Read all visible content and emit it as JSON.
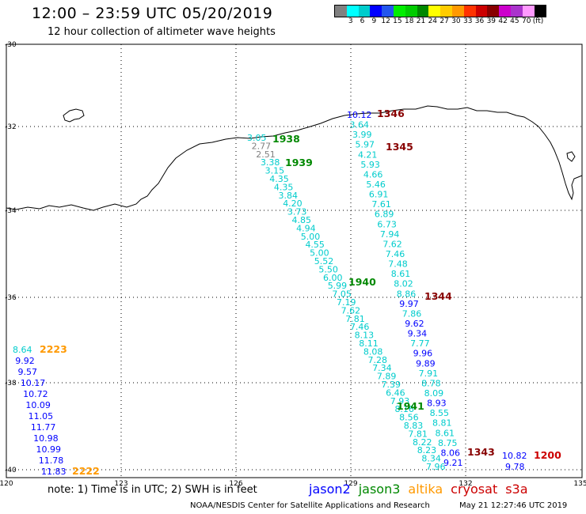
{
  "title": "12:00 – 23:59 UTC 05/20/2019",
  "subtitle": "12 hour collection of altimeter wave heights",
  "legend": {
    "colors": [
      "#808080",
      "#00ffff",
      "#00cccc",
      "#0000ff",
      "#2255ee",
      "#00ee00",
      "#00cc00",
      "#008800",
      "#ffff00",
      "#ffcc00",
      "#ff9900",
      "#ff3300",
      "#cc0000",
      "#880000",
      "#cc00cc",
      "#aa33cc",
      "#ff99ff",
      "#000000"
    ],
    "labels": [
      "3",
      "6",
      "9",
      "12",
      "15",
      "18",
      "21",
      "24",
      "27",
      "30",
      "33",
      "36",
      "39",
      "42",
      "45",
      "70",
      "(ft)"
    ]
  },
  "axes": {
    "x_ticks": [
      "120",
      "123",
      "126",
      "129",
      "132",
      "135"
    ],
    "y_ticks": [
      "-30",
      "-32",
      "-34",
      "-36",
      "-38",
      "-40"
    ]
  },
  "passes": [
    {
      "label": "1346",
      "color": "#880000"
    },
    {
      "label": "1345",
      "color": "#880000"
    },
    {
      "label": "1938",
      "color": "#008800"
    },
    {
      "label": "1939",
      "color": "#008800"
    },
    {
      "label": "1940",
      "color": "#008800"
    },
    {
      "label": "1344",
      "color": "#880000"
    },
    {
      "label": "1941",
      "color": "#008800"
    },
    {
      "label": "1343",
      "color": "#880000"
    },
    {
      "label": "1200",
      "color": "#cc0000"
    },
    {
      "label": "2223",
      "color": "#ff9900"
    },
    {
      "label": "2222",
      "color": "#ff9900"
    }
  ],
  "track_a": [
    "3.05",
    "2.77",
    "2.51",
    "3.38",
    "3.15",
    "4.35",
    "4.35",
    "3.84",
    "4.20",
    "3.73",
    "4.85",
    "4.94",
    "5.00",
    "4.55",
    "5.00",
    "5.52",
    "5.50",
    "6.00",
    "5.99",
    "7.05",
    "7.19",
    "7.62",
    "7.81",
    "7.46",
    "8.13",
    "8.11",
    "8.08",
    "7.28",
    "7.34",
    "7.89",
    "7.39",
    "6.46",
    "7.93",
    "8.16",
    "8.56",
    "8.83",
    "7.81",
    "8.22",
    "8.23",
    "8.34",
    "7.96"
  ],
  "track_a_colors": [
    "#00cccc",
    "#808080",
    "#808080",
    "#00cccc",
    "#00cccc",
    "#00cccc",
    "#00cccc",
    "#00cccc",
    "#00cccc",
    "#00cccc",
    "#00cccc",
    "#00cccc",
    "#00cccc",
    "#00cccc",
    "#00cccc",
    "#00cccc",
    "#00cccc",
    "#00cccc",
    "#00cccc",
    "#00cccc",
    "#00cccc",
    "#00cccc",
    "#00cccc",
    "#00cccc",
    "#00cccc",
    "#00cccc",
    "#00cccc",
    "#00cccc",
    "#00cccc",
    "#00cccc",
    "#00cccc",
    "#00cccc",
    "#00cccc",
    "#00cccc",
    "#00cccc",
    "#00cccc",
    "#00cccc",
    "#00cccc",
    "#00cccc",
    "#00cccc",
    "#00cccc"
  ],
  "track_b": [
    "10.12",
    "3.64",
    "3.99",
    "5.97",
    "4.21",
    "5.93",
    "4.66",
    "5.46",
    "6.91",
    "7.61",
    "6.89",
    "6.73",
    "7.94",
    "7.62",
    "7.46",
    "7.48",
    "8.61",
    "8.02",
    "8.86",
    "9.97",
    "7.86",
    "9.62",
    "9.34",
    "7.77",
    "9.96",
    "9.89",
    "7.91",
    "8.78",
    "8.09",
    "8.93",
    "8.55",
    "8.81",
    "8.61",
    "8.75",
    "8.06",
    "9.21"
  ],
  "track_b_colors": [
    "#0000ff",
    "#00cccc",
    "#00cccc",
    "#00cccc",
    "#00cccc",
    "#00cccc",
    "#00cccc",
    "#00cccc",
    "#00cccc",
    "#00cccc",
    "#00cccc",
    "#00cccc",
    "#00cccc",
    "#00cccc",
    "#00cccc",
    "#00cccc",
    "#00cccc",
    "#00cccc",
    "#00cccc",
    "#0000ff",
    "#00cccc",
    "#0000ff",
    "#0000ff",
    "#00cccc",
    "#0000ff",
    "#0000ff",
    "#00cccc",
    "#00cccc",
    "#00cccc",
    "#0000ff",
    "#00cccc",
    "#00cccc",
    "#00cccc",
    "#00cccc",
    "#0000ff",
    "#0000ff"
  ],
  "track_c": [
    "8.64",
    "9.92",
    "9.57",
    "10.17",
    "10.72",
    "10.09",
    "11.05",
    "11.77",
    "10.98",
    "10.99",
    "11.78",
    "11.83"
  ],
  "track_c_colors": [
    "#00cccc",
    "#0000ff",
    "#0000ff",
    "#0000ff",
    "#0000ff",
    "#0000ff",
    "#0000ff",
    "#0000ff",
    "#0000ff",
    "#0000ff",
    "#0000ff",
    "#0000ff"
  ],
  "track_d": [
    "10.82",
    "9.78"
  ],
  "note": "note: 1) Time is in UTC; 2) SWH is in feet",
  "satellites": [
    {
      "name": "jason2",
      "color": "#0000ff"
    },
    {
      "name": "jason3",
      "color": "#008800"
    },
    {
      "name": "altika",
      "color": "#ff9900"
    },
    {
      "name": "cryosat",
      "color": "#cc0000"
    },
    {
      "name": "s3a",
      "color": "#cc0000"
    }
  ],
  "credit": "NOAA/NESDIS Center for Satellite Applications and Research",
  "timestamp": "May 21 12:27:46 UTC 2019"
}
